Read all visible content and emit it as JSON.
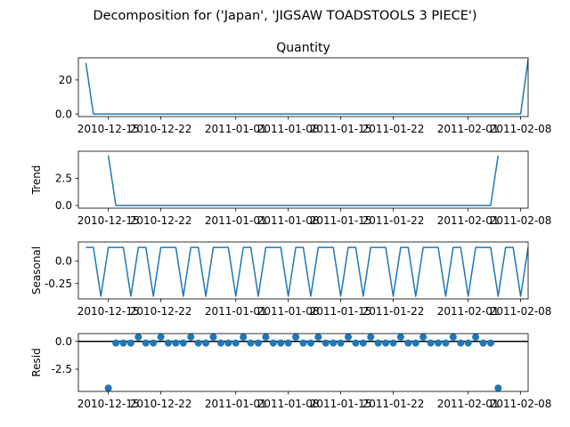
{
  "figure": {
    "suptitle": "Decomposition for ('Japan', 'JIGSAW TOADSTOOLS 3 PIECE')"
  },
  "colors": {
    "series": "#1f77b4",
    "axis": "#000000",
    "zero_line": "#000000"
  },
  "chart_data": [
    {
      "type": "line",
      "title": "Quantity",
      "ylabel": "",
      "x_start": "2010-12-12",
      "x_end": "2011-02-09",
      "xlim": [
        "2010-12-11",
        "2011-02-09"
      ],
      "xticks": [
        "2010-12-15",
        "2010-12-22",
        "2011-01-01",
        "2011-01-08",
        "2011-01-15",
        "2011-01-22",
        "2011-02-01",
        "2011-02-08"
      ],
      "ylim": [
        -1.5,
        33
      ],
      "yticks": [
        0,
        20
      ],
      "values": [
        30,
        0,
        0,
        0,
        0,
        0,
        0,
        0,
        0,
        0,
        0,
        0,
        0,
        0,
        0,
        0,
        0,
        0,
        0,
        0,
        0,
        0,
        0,
        0,
        0,
        0,
        0,
        0,
        0,
        0,
        0,
        0,
        0,
        0,
        0,
        0,
        0,
        0,
        0,
        0,
        0,
        0,
        0,
        0,
        0,
        0,
        0,
        0,
        0,
        0,
        0,
        0,
        0,
        0,
        0,
        0,
        0,
        0,
        0,
        32
      ]
    },
    {
      "type": "line",
      "title": "",
      "ylabel": "Trend",
      "x_start": "2010-12-15",
      "x_end": "2011-02-06",
      "xlim": [
        "2010-12-11",
        "2011-02-09"
      ],
      "xticks": [
        "2010-12-15",
        "2010-12-22",
        "2011-01-01",
        "2011-01-08",
        "2011-01-15",
        "2011-01-22",
        "2011-02-01",
        "2011-02-08"
      ],
      "ylim": [
        -0.25,
        5.0
      ],
      "yticks": [
        0.0,
        2.5
      ],
      "values": [
        4.6,
        0,
        0,
        0,
        0,
        0,
        0,
        0,
        0,
        0,
        0,
        0,
        0,
        0,
        0,
        0,
        0,
        0,
        0,
        0,
        0,
        0,
        0,
        0,
        0,
        0,
        0,
        0,
        0,
        0,
        0,
        0,
        0,
        0,
        0,
        0,
        0,
        0,
        0,
        0,
        0,
        0,
        0,
        0,
        0,
        0,
        0,
        0,
        0,
        0,
        0,
        0,
        4.6
      ]
    },
    {
      "type": "line",
      "title": "",
      "ylabel": "Seasonal",
      "x_start": "2010-12-12",
      "x_end": "2011-02-09",
      "xlim": [
        "2010-12-11",
        "2011-02-09"
      ],
      "xticks": [
        "2010-12-15",
        "2010-12-22",
        "2011-01-01",
        "2011-01-08",
        "2011-01-15",
        "2011-01-22",
        "2011-02-01",
        "2011-02-08"
      ],
      "ylim": [
        -0.42,
        0.21
      ],
      "yticks": [
        0.0,
        -0.25
      ],
      "period_pattern": [
        0.15,
        0.15,
        -0.39,
        0.15,
        0.15,
        0.15,
        -0.39
      ],
      "pattern_offset": 0,
      "count": 60
    },
    {
      "type": "scatter",
      "title": "",
      "ylabel": "Resid",
      "x_start": "2010-12-15",
      "x_end": "2011-02-06",
      "xlim": [
        "2010-12-11",
        "2011-02-09"
      ],
      "xticks": [
        "2010-12-15",
        "2010-12-22",
        "2011-01-01",
        "2011-01-08",
        "2011-01-15",
        "2011-01-22",
        "2011-02-01",
        "2011-02-08"
      ],
      "ylim": [
        -4.5,
        0.7
      ],
      "yticks": [
        0.0,
        -2.5
      ],
      "zero_line": true,
      "values": [
        -4.2,
        -0.15,
        -0.15,
        -0.15,
        0.39,
        -0.15,
        -0.15,
        0.39,
        -0.15,
        -0.15,
        -0.15,
        0.39,
        -0.15,
        -0.15,
        0.39,
        -0.15,
        -0.15,
        -0.15,
        0.39,
        -0.15,
        -0.15,
        0.39,
        -0.15,
        -0.15,
        -0.15,
        0.39,
        -0.15,
        -0.15,
        0.39,
        -0.15,
        -0.15,
        -0.15,
        0.39,
        -0.15,
        -0.15,
        0.39,
        -0.15,
        -0.15,
        -0.15,
        0.39,
        -0.15,
        -0.15,
        0.39,
        -0.15,
        -0.15,
        -0.15,
        0.39,
        -0.15,
        -0.15,
        0.39,
        -0.15,
        -0.15,
        -4.2
      ]
    }
  ]
}
